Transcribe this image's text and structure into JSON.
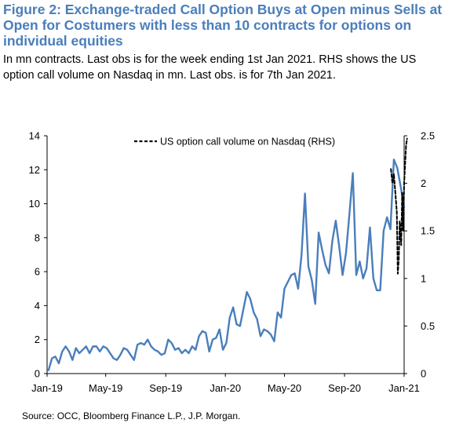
{
  "header": {
    "title": "Figure 2: Exchange-traded Call Option Buys at Open minus Sells at Open for Costumers with less than 10 contracts for options on individual equities",
    "subtitle": "In mn contracts. Last obs is for the week ending 1st Jan 2021. RHS shows the US option call volume on Nasdaq in mn. Last obs. is for 7th Jan 2021."
  },
  "footer": {
    "source": "Source: OCC, Bloomberg Finance L.P., J.P. Morgan."
  },
  "chart_data": {
    "type": "line",
    "title": "",
    "xlabel": "",
    "ylabel": "",
    "x_tick_labels": [
      "Jan-19",
      "May-19",
      "Sep-19",
      "Jan-20",
      "May-20",
      "Sep-20",
      "Jan-21"
    ],
    "y_left_ticks": [
      "0",
      "2",
      "4",
      "6",
      "8",
      "10",
      "12",
      "14"
    ],
    "y_right_ticks": [
      "0",
      "0.5",
      "1",
      "1.5",
      "2",
      "2.5"
    ],
    "ylim_left": [
      0,
      14
    ],
    "ylim_right": [
      0,
      2.5
    ],
    "grid": false,
    "legend_position": "top",
    "colors": {
      "lhs_series": "#4a7ebb",
      "rhs_series": "#000000",
      "title": "#4a7ebb"
    },
    "series": [
      {
        "name": "",
        "axis": "left",
        "style": "solid",
        "x": [
          "2019-01-04",
          "2019-01-11",
          "2019-01-18",
          "2019-01-25",
          "2019-02-01",
          "2019-02-08",
          "2019-02-15",
          "2019-02-22",
          "2019-03-01",
          "2019-03-08",
          "2019-03-15",
          "2019-03-22",
          "2019-03-29",
          "2019-04-05",
          "2019-04-12",
          "2019-04-19",
          "2019-04-26",
          "2019-05-03",
          "2019-05-10",
          "2019-05-17",
          "2019-05-24",
          "2019-05-31",
          "2019-06-07",
          "2019-06-14",
          "2019-06-21",
          "2019-06-28",
          "2019-07-05",
          "2019-07-12",
          "2019-07-19",
          "2019-07-26",
          "2019-08-02",
          "2019-08-09",
          "2019-08-16",
          "2019-08-23",
          "2019-08-30",
          "2019-09-06",
          "2019-09-13",
          "2019-09-20",
          "2019-09-27",
          "2019-10-04",
          "2019-10-11",
          "2019-10-18",
          "2019-10-25",
          "2019-11-01",
          "2019-11-08",
          "2019-11-15",
          "2019-11-22",
          "2019-11-29",
          "2019-12-06",
          "2019-12-13",
          "2019-12-20",
          "2019-12-27",
          "2020-01-03",
          "2020-01-10",
          "2020-01-17",
          "2020-01-24",
          "2020-01-31",
          "2020-02-07",
          "2020-02-14",
          "2020-02-21",
          "2020-02-28",
          "2020-03-06",
          "2020-03-13",
          "2020-03-20",
          "2020-03-27",
          "2020-04-03",
          "2020-04-10",
          "2020-04-17",
          "2020-04-24",
          "2020-05-01",
          "2020-05-08",
          "2020-05-15",
          "2020-05-22",
          "2020-05-29",
          "2020-06-05",
          "2020-06-12",
          "2020-06-19",
          "2020-06-26",
          "2020-07-03",
          "2020-07-10",
          "2020-07-17",
          "2020-07-24",
          "2020-07-31",
          "2020-08-07",
          "2020-08-14",
          "2020-08-21",
          "2020-08-28",
          "2020-09-04",
          "2020-09-11",
          "2020-09-18",
          "2020-09-25",
          "2020-10-02",
          "2020-10-09",
          "2020-10-16",
          "2020-10-23",
          "2020-10-30",
          "2020-11-06",
          "2020-11-13",
          "2020-11-20",
          "2020-11-27",
          "2020-12-04",
          "2020-12-11",
          "2020-12-18",
          "2020-12-25",
          "2021-01-01"
        ],
        "values": [
          0.2,
          0.9,
          1.0,
          0.6,
          1.3,
          1.6,
          1.3,
          0.8,
          1.5,
          1.2,
          1.4,
          1.6,
          1.2,
          1.6,
          1.6,
          1.3,
          1.6,
          1.5,
          1.2,
          0.9,
          0.8,
          1.1,
          1.5,
          1.4,
          1.1,
          0.8,
          1.7,
          1.8,
          1.7,
          2.0,
          1.6,
          1.4,
          1.3,
          1.1,
          1.2,
          2.0,
          1.8,
          1.4,
          1.5,
          1.2,
          1.4,
          1.2,
          1.6,
          1.4,
          2.2,
          2.5,
          2.4,
          1.3,
          2.0,
          2.1,
          2.6,
          1.4,
          1.8,
          3.3,
          3.9,
          2.9,
          2.8,
          3.8,
          4.8,
          4.4,
          3.6,
          3.2,
          2.2,
          2.6,
          2.5,
          2.3,
          1.9,
          3.6,
          3.3,
          5.0,
          5.4,
          5.8,
          5.9,
          5.0,
          7.0,
          10.6,
          6.3,
          5.5,
          4.1,
          8.3,
          7.3,
          6.4,
          5.9,
          7.8,
          9.0,
          7.5,
          5.8,
          7.1,
          9.4,
          11.8,
          5.8,
          6.6,
          5.6,
          6.2,
          8.6,
          5.6,
          4.9,
          4.9,
          8.4,
          9.2,
          8.5,
          12.6,
          12.1,
          11.0,
          9.8
        ]
      },
      {
        "name": "US option call volume on Nasdaq (RHS)",
        "axis": "right",
        "style": "dashed",
        "x": [
          "2020-12-05",
          "2020-12-08",
          "2020-12-11",
          "2020-12-14",
          "2020-12-17",
          "2020-12-19",
          "2020-12-21",
          "2020-12-23",
          "2020-12-26",
          "2020-12-28",
          "2020-12-30",
          "2021-01-01",
          "2021-01-03",
          "2021-01-05",
          "2021-01-07"
        ],
        "values": [
          2.15,
          2.0,
          2.1,
          1.9,
          1.7,
          1.05,
          1.2,
          1.6,
          1.35,
          1.9,
          1.5,
          2.0,
          2.2,
          2.4,
          2.47
        ]
      }
    ]
  }
}
